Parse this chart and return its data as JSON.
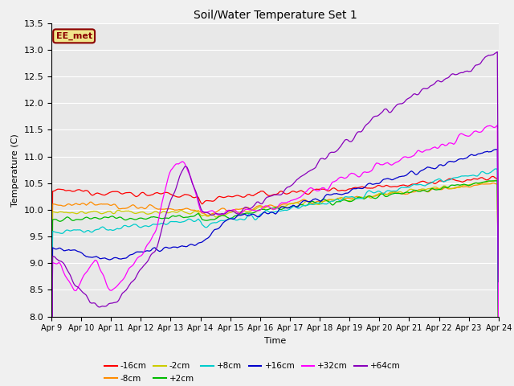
{
  "title": "Soil/Water Temperature Set 1",
  "xlabel": "Time",
  "ylabel": "Temperature (C)",
  "ylim": [
    8.0,
    13.5
  ],
  "yticks": [
    8.0,
    8.5,
    9.0,
    9.5,
    10.0,
    10.5,
    11.0,
    11.5,
    12.0,
    12.5,
    13.0,
    13.5
  ],
  "xtick_labels": [
    "Apr 9",
    "Apr 10",
    "Apr 11",
    "Apr 12",
    "Apr 13",
    "Apr 14",
    "Apr 15",
    "Apr 16",
    "Apr 17",
    "Apr 18",
    "Apr 19",
    "Apr 20",
    "Apr 21",
    "Apr 22",
    "Apr 23",
    "Apr 24"
  ],
  "annotation_text": "EE_met",
  "annotation_color": "#8B0000",
  "annotation_bg": "#f0e68c",
  "series": [
    {
      "label": "-16cm",
      "color": "#ff0000"
    },
    {
      "label": "-8cm",
      "color": "#ff8c00"
    },
    {
      "label": "-2cm",
      "color": "#cccc00"
    },
    {
      "label": "+2cm",
      "color": "#00bb00"
    },
    {
      "label": "+8cm",
      "color": "#00cccc"
    },
    {
      "label": "+16cm",
      "color": "#0000cc"
    },
    {
      "label": "+32cm",
      "color": "#ff00ff"
    },
    {
      "label": "+64cm",
      "color": "#8800bb"
    }
  ],
  "fig_bg": "#f0f0f0",
  "plot_bg": "#e8e8e8",
  "grid_color": "#ffffff"
}
